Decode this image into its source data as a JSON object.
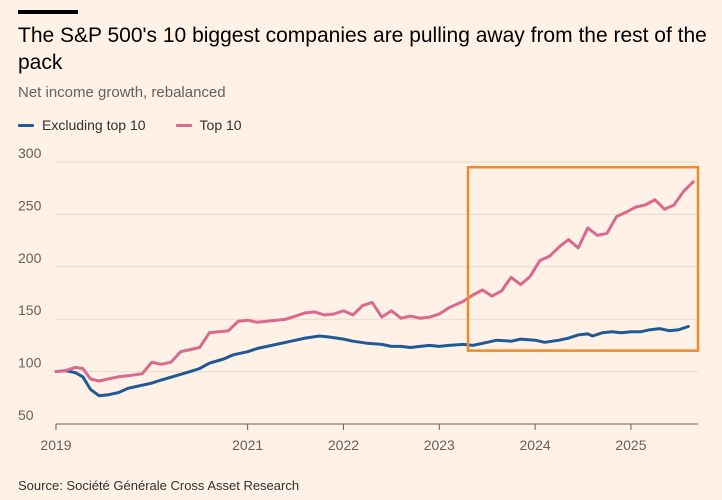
{
  "header": {
    "title": "The S&P 500's 10 biggest companies are pulling away from the rest of the pack",
    "subtitle": "Net income growth, rebalanced"
  },
  "legend": [
    {
      "label": "Excluding top 10",
      "color": "#1F5A96"
    },
    {
      "label": "Top 10",
      "color": "#D96A8E"
    }
  ],
  "source": "Source: Société Générale Cross Asset Research",
  "highlight_color": "#F08A2C",
  "chart_data": {
    "type": "line",
    "title": "The S&P 500's 10 biggest companies are pulling away from the rest of the pack",
    "subtitle": "Net income growth, rebalanced",
    "xlabel": "",
    "ylabel": "",
    "xlim": [
      2019.0,
      2025.7
    ],
    "ylim": [
      50,
      300
    ],
    "yticks": [
      50,
      100,
      150,
      200,
      250,
      300
    ],
    "xticks": [
      2019,
      2021,
      2022,
      2023,
      2024,
      2025
    ],
    "grid": "horizontal",
    "highlight_region": {
      "x": [
        2023.3,
        2025.7
      ],
      "y": [
        120,
        295
      ]
    },
    "series": [
      {
        "name": "Excluding top 10",
        "color": "#1F5A96",
        "points": [
          [
            2019.0,
            100
          ],
          [
            2019.1,
            101
          ],
          [
            2019.2,
            99
          ],
          [
            2019.28,
            95
          ],
          [
            2019.36,
            83
          ],
          [
            2019.45,
            77
          ],
          [
            2019.55,
            78
          ],
          [
            2019.65,
            80
          ],
          [
            2019.75,
            84
          ],
          [
            2019.9,
            87
          ],
          [
            2020.0,
            89
          ],
          [
            2020.1,
            92
          ],
          [
            2020.25,
            96
          ],
          [
            2020.4,
            100
          ],
          [
            2020.5,
            103
          ],
          [
            2020.6,
            108
          ],
          [
            2020.75,
            112
          ],
          [
            2020.85,
            116
          ],
          [
            2021.0,
            119
          ],
          [
            2021.1,
            122
          ],
          [
            2021.25,
            125
          ],
          [
            2021.4,
            128
          ],
          [
            2021.5,
            130
          ],
          [
            2021.6,
            132
          ],
          [
            2021.75,
            134
          ],
          [
            2021.85,
            133
          ],
          [
            2022.0,
            131
          ],
          [
            2022.1,
            129
          ],
          [
            2022.25,
            127
          ],
          [
            2022.4,
            126
          ],
          [
            2022.5,
            124
          ],
          [
            2022.6,
            124
          ],
          [
            2022.7,
            123
          ],
          [
            2022.8,
            124
          ],
          [
            2022.9,
            125
          ],
          [
            2023.0,
            124
          ],
          [
            2023.1,
            125
          ],
          [
            2023.25,
            126
          ],
          [
            2023.35,
            125
          ],
          [
            2023.5,
            128
          ],
          [
            2023.6,
            130
          ],
          [
            2023.75,
            129
          ],
          [
            2023.85,
            131
          ],
          [
            2024.0,
            130
          ],
          [
            2024.1,
            128
          ],
          [
            2024.25,
            130
          ],
          [
            2024.35,
            132
          ],
          [
            2024.45,
            135
          ],
          [
            2024.55,
            136
          ],
          [
            2024.6,
            134
          ],
          [
            2024.7,
            137
          ],
          [
            2024.8,
            138
          ],
          [
            2024.9,
            137
          ],
          [
            2025.0,
            138
          ],
          [
            2025.1,
            138
          ],
          [
            2025.2,
            140
          ],
          [
            2025.3,
            141
          ],
          [
            2025.4,
            139
          ],
          [
            2025.5,
            140
          ],
          [
            2025.6,
            143
          ]
        ]
      },
      {
        "name": "Top 10",
        "color": "#D96A8E",
        "points": [
          [
            2019.0,
            100
          ],
          [
            2019.1,
            101
          ],
          [
            2019.2,
            104
          ],
          [
            2019.28,
            103
          ],
          [
            2019.36,
            93
          ],
          [
            2019.45,
            91
          ],
          [
            2019.55,
            93
          ],
          [
            2019.65,
            95
          ],
          [
            2019.75,
            96
          ],
          [
            2019.9,
            98
          ],
          [
            2020.0,
            109
          ],
          [
            2020.1,
            107
          ],
          [
            2020.2,
            109
          ],
          [
            2020.3,
            119
          ],
          [
            2020.4,
            121
          ],
          [
            2020.5,
            123
          ],
          [
            2020.6,
            137
          ],
          [
            2020.7,
            138
          ],
          [
            2020.8,
            139
          ],
          [
            2020.9,
            148
          ],
          [
            2021.0,
            149
          ],
          [
            2021.1,
            147
          ],
          [
            2021.2,
            148
          ],
          [
            2021.3,
            149
          ],
          [
            2021.4,
            150
          ],
          [
            2021.5,
            153
          ],
          [
            2021.6,
            156
          ],
          [
            2021.7,
            157
          ],
          [
            2021.8,
            154
          ],
          [
            2021.9,
            155
          ],
          [
            2022.0,
            158
          ],
          [
            2022.1,
            154
          ],
          [
            2022.2,
            163
          ],
          [
            2022.3,
            166
          ],
          [
            2022.4,
            152
          ],
          [
            2022.5,
            158
          ],
          [
            2022.6,
            151
          ],
          [
            2022.7,
            153
          ],
          [
            2022.8,
            151
          ],
          [
            2022.9,
            152
          ],
          [
            2023.0,
            155
          ],
          [
            2023.1,
            161
          ],
          [
            2023.25,
            167
          ],
          [
            2023.35,
            173
          ],
          [
            2023.45,
            178
          ],
          [
            2023.55,
            172
          ],
          [
            2023.65,
            177
          ],
          [
            2023.75,
            190
          ],
          [
            2023.85,
            183
          ],
          [
            2023.95,
            191
          ],
          [
            2024.05,
            206
          ],
          [
            2024.15,
            210
          ],
          [
            2024.25,
            219
          ],
          [
            2024.35,
            226
          ],
          [
            2024.45,
            218
          ],
          [
            2024.55,
            237
          ],
          [
            2024.65,
            230
          ],
          [
            2024.75,
            232
          ],
          [
            2024.85,
            248
          ],
          [
            2024.95,
            252
          ],
          [
            2025.05,
            257
          ],
          [
            2025.15,
            259
          ],
          [
            2025.25,
            264
          ],
          [
            2025.35,
            255
          ],
          [
            2025.45,
            259
          ],
          [
            2025.55,
            272
          ],
          [
            2025.65,
            281
          ]
        ]
      }
    ]
  }
}
